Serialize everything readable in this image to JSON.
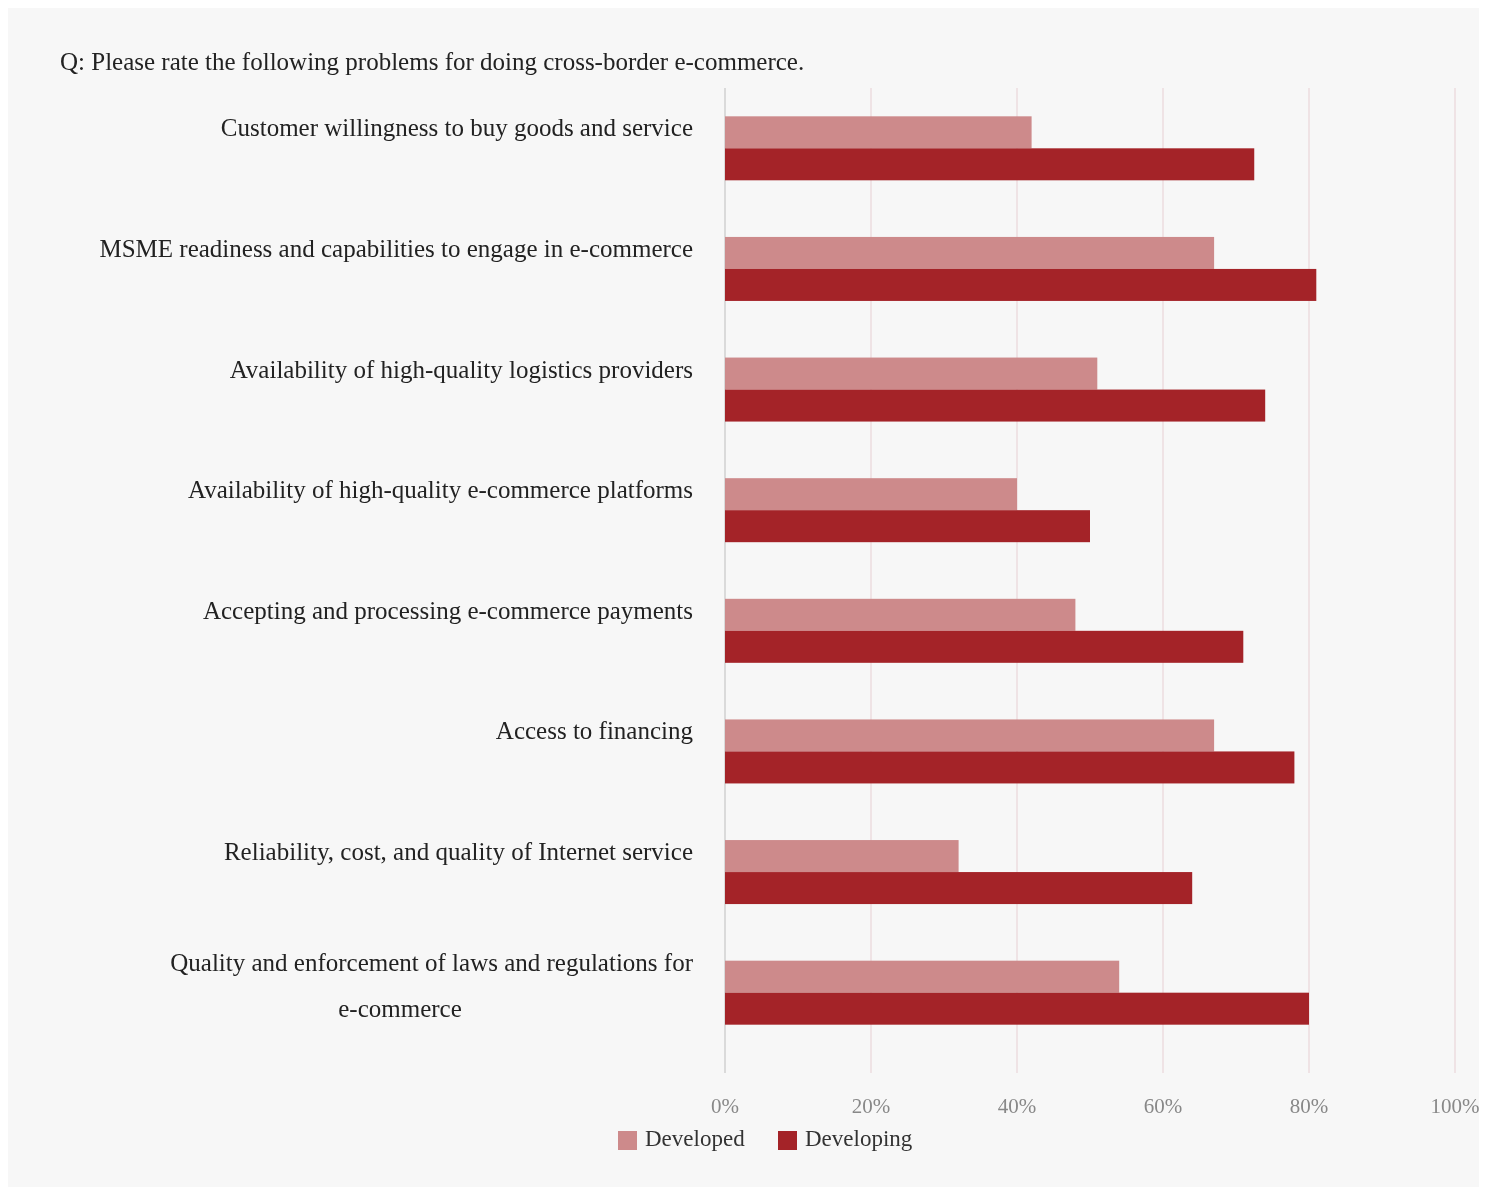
{
  "chart_data": {
    "type": "bar",
    "orientation": "horizontal",
    "title": "Q: Please rate the following problems for doing cross-border e-commerce.",
    "categories": [
      "Customer willingness to buy goods and service",
      "MSME readiness and capabilities to engage in e-commerce",
      "Availability of high-quality logistics providers",
      "Availability of high-quality e-commerce platforms",
      "Accepting and processing e-commerce payments",
      "Access to financing",
      "Reliability, cost, and quality of Internet service",
      "Quality and enforcement of laws and regulations for e-commerce"
    ],
    "series": [
      {
        "name": "Developed",
        "color": "#cd8a8b",
        "values": [
          42,
          67,
          51,
          40,
          48,
          67,
          32,
          54
        ]
      },
      {
        "name": "Developing",
        "color": "#a42328",
        "values": [
          72.5,
          81,
          74,
          50,
          71,
          78,
          64,
          80
        ]
      }
    ],
    "xlim": [
      0,
      100
    ],
    "xticks": [
      {
        "value": 0,
        "label": "0%"
      },
      {
        "value": 20,
        "label": "20%"
      },
      {
        "value": 40,
        "label": "40%"
      },
      {
        "value": 60,
        "label": "60%"
      },
      {
        "value": 80,
        "label": "80%"
      },
      {
        "value": 100,
        "label": "100%"
      }
    ],
    "grid": "x",
    "legend": "bottom"
  }
}
